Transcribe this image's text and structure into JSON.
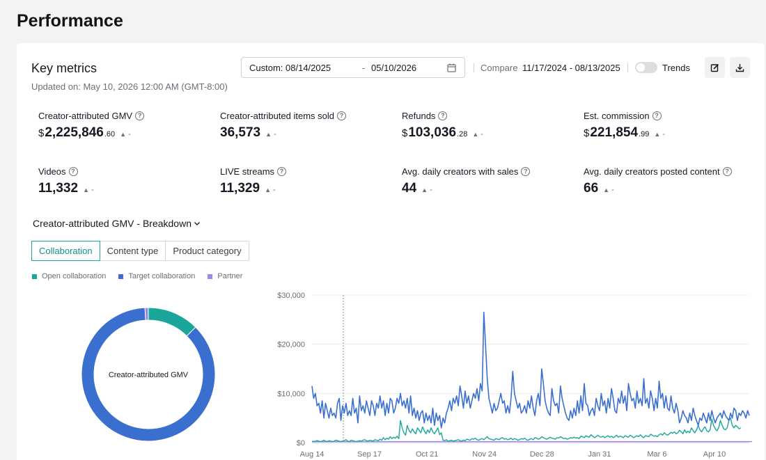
{
  "page": {
    "title": "Performance"
  },
  "key_metrics": {
    "title": "Key metrics",
    "updated": "Updated on: May 10, 2026 12:00 AM (GMT-8:00)",
    "date_start": "Custom: 08/14/2025",
    "date_sep": "-",
    "date_end": "05/10/2026",
    "compare_label": "Compare",
    "compare_range": "11/17/2024 - 08/13/2025",
    "trends_label": "Trends",
    "trends_on": false
  },
  "metrics": [
    {
      "label": "Creator-attributed GMV",
      "currency": "$",
      "value": "2,225,846",
      "decimal": ".60",
      "trend": "▲",
      "trend_value": "-"
    },
    {
      "label": "Creator-attributed items sold",
      "currency": "",
      "value": "36,573",
      "decimal": "",
      "trend": "▲",
      "trend_value": "-"
    },
    {
      "label": "Refunds",
      "currency": "$",
      "value": "103,036",
      "decimal": ".28",
      "trend": "▲",
      "trend_value": "-"
    },
    {
      "label": "Est. commission",
      "currency": "$",
      "value": "221,854",
      "decimal": ".99",
      "trend": "▲",
      "trend_value": "-"
    },
    {
      "label": "Videos",
      "currency": "",
      "value": "11,332",
      "decimal": "",
      "trend": "▲",
      "trend_value": "-"
    },
    {
      "label": "LIVE streams",
      "currency": "",
      "value": "11,329",
      "decimal": "",
      "trend": "▲",
      "trend_value": "-"
    },
    {
      "label": "Avg. daily creators with sales",
      "currency": "",
      "value": "44",
      "decimal": "",
      "trend": "▲",
      "trend_value": "-"
    },
    {
      "label": "Avg. daily creators posted content",
      "currency": "",
      "value": "66",
      "decimal": "",
      "trend": "▲",
      "trend_value": "-"
    }
  ],
  "breakdown": {
    "title": "Creator-attributed GMV - Breakdown",
    "tabs": [
      {
        "label": "Collaboration",
        "active": true
      },
      {
        "label": "Content type",
        "active": false
      },
      {
        "label": "Product category",
        "active": false
      }
    ],
    "legend": [
      {
        "label": "Open collaboration",
        "color": "#1aa69b"
      },
      {
        "label": "Target collaboration",
        "color": "#3a6fd0"
      },
      {
        "label": "Partner",
        "color": "#9b87e6"
      }
    ]
  },
  "chart_data": [
    {
      "type": "pie",
      "center_label": "Creator-attributed GMV",
      "categories": [
        "Open collaboration",
        "Target collaboration",
        "Partner"
      ],
      "values": [
        12.5,
        86.7,
        0.8
      ],
      "colors": [
        "#1aa69b",
        "#3a6fd0",
        "#9b87e6"
      ]
    },
    {
      "type": "line",
      "x_tick_labels": [
        "Aug 14",
        "Sep 17",
        "Oct 21",
        "Nov 24",
        "Dec 28",
        "Jan 31",
        "Mar 6",
        "Apr 10"
      ],
      "y_tick_labels": [
        "$0",
        "$10,000",
        "$20,000",
        "$30,000"
      ],
      "ylim": [
        0,
        30000
      ],
      "grid": true,
      "series": [
        {
          "name": "Target collaboration",
          "color": "#3a6fd0",
          "values": [
            11500,
            9000,
            10000,
            7500,
            8000,
            6000,
            8500,
            5000,
            8000,
            6500,
            5000,
            7000,
            5500,
            6000,
            5000,
            8000,
            9000,
            4500,
            7500,
            6000,
            8000,
            5500,
            6500,
            5500,
            9000,
            6000,
            7000,
            4000,
            9500,
            6500,
            7500,
            6000,
            8500,
            7000,
            5500,
            8500,
            7500,
            5500,
            8000,
            7000,
            9500,
            7000,
            8500,
            5500,
            8000,
            6000,
            9000,
            8500,
            6000,
            7000,
            9000,
            8000,
            10000,
            7500,
            8500,
            7000,
            9000,
            6000,
            9500,
            5500,
            7000,
            5000,
            6500,
            4500,
            6000,
            6500,
            4000,
            6000,
            4500,
            5500,
            4000,
            7000,
            3500,
            6000,
            4500,
            5500,
            3000,
            5000,
            4000,
            6000,
            7000,
            8500,
            6500,
            9000,
            8000,
            9500,
            7500,
            11500,
            9500,
            7000,
            10500,
            8000,
            9500,
            7000,
            8500,
            10000,
            9000,
            11000,
            8500,
            12000,
            10500,
            26500,
            20000,
            13000,
            9000,
            7500,
            6000,
            8000,
            6500,
            7000,
            8500,
            10000,
            8000,
            8500,
            6000,
            7500,
            6000,
            9000,
            14500,
            10000,
            8500,
            7000,
            8000,
            6000,
            6500,
            7500,
            6000,
            8500,
            7000,
            9500,
            7000,
            5500,
            8500,
            10000,
            7500,
            15000,
            12000,
            8500,
            7000,
            6000,
            5500,
            11000,
            8500,
            7500,
            8000,
            6000,
            11500,
            9000,
            7500,
            6000,
            5000,
            4500,
            6500,
            5000,
            7000,
            5500,
            8500,
            6000,
            9500,
            6500,
            12000,
            8000,
            7500,
            5500,
            6500,
            7000,
            5500,
            9000,
            7500,
            6500,
            10000,
            7500,
            8500,
            6000,
            9000,
            7000,
            11000,
            9000,
            6500,
            6000,
            9000,
            8000,
            10500,
            8000,
            9500,
            6500,
            12000,
            10000,
            8500,
            9000,
            7000,
            10500,
            8000,
            9000,
            7500,
            13000,
            8000,
            9000,
            7000,
            10500,
            9000,
            6500,
            9000,
            7000,
            12500,
            9000,
            10000,
            7000,
            9500,
            7000,
            6500,
            9500,
            7000,
            6000,
            8000,
            6500,
            4000,
            5000,
            6500,
            5500,
            5000,
            4000,
            6000,
            4500,
            7000,
            5500,
            4500,
            3500,
            5000,
            4500,
            6000,
            5000,
            4000,
            6000,
            4500,
            6500,
            5000,
            4000,
            5000,
            5500,
            6000,
            5000,
            6500,
            5500,
            5000,
            4500,
            6000,
            5000,
            7000,
            6500,
            4500,
            6000,
            5500,
            6500,
            6000,
            5000,
            6500,
            5500
          ]
        },
        {
          "name": "Open collaboration",
          "color": "#1aa69b",
          "values": [
            300,
            200,
            300,
            400,
            300,
            200,
            300,
            500,
            300,
            200,
            400,
            300,
            200,
            300,
            500,
            400,
            300,
            200,
            300,
            400,
            600,
            300,
            200,
            500,
            400,
            300,
            200,
            300,
            400,
            300,
            500,
            600,
            400,
            300,
            500,
            400,
            300,
            600,
            500,
            400,
            700,
            500,
            1000,
            600,
            900,
            700,
            1200,
            800,
            1100,
            900,
            1300,
            800,
            4500,
            3000,
            2000,
            1500,
            3500,
            2500,
            2000,
            2800,
            2200,
            1800,
            3000,
            2500,
            2000,
            3200,
            2400,
            1800,
            2600,
            2000,
            3000,
            2200,
            1800,
            2400,
            3000,
            1600,
            2000,
            500,
            400,
            600,
            300,
            400,
            500,
            300,
            400,
            500,
            600,
            400,
            300,
            500,
            400,
            700,
            600,
            500,
            800,
            700,
            900,
            600,
            500,
            700,
            800,
            600,
            900,
            1200,
            800,
            700,
            600,
            500,
            800,
            700,
            600,
            900,
            1000,
            700,
            800,
            600,
            700,
            900,
            600,
            800,
            700,
            500,
            600,
            800,
            700,
            900,
            600,
            500,
            700,
            800,
            600,
            1000,
            900,
            700,
            800,
            1200,
            1000,
            800,
            700,
            900,
            1100,
            900,
            800,
            700,
            1000,
            900,
            1200,
            1000,
            800,
            900,
            700,
            800,
            1000,
            900,
            1100,
            900,
            1000,
            800,
            1300,
            1200,
            1000,
            1400,
            1200,
            1100,
            1600,
            1300,
            1000,
            1200,
            1500,
            1200,
            1100,
            1300,
            1000,
            1200,
            1400,
            1100,
            1300,
            1000,
            1200,
            1500,
            1100,
            1300,
            1200,
            1000,
            1400,
            1200,
            1100,
            1500,
            1300,
            1000,
            1200,
            1400,
            1200,
            1600,
            1200,
            1000,
            1400,
            1300,
            1200,
            1700,
            1500,
            1300,
            1400,
            1200,
            1600,
            1800,
            1500,
            2000,
            1700,
            1500,
            1800,
            2100,
            1900,
            2200,
            1800,
            2000,
            2500,
            2200,
            1800,
            2600,
            2000,
            2300,
            2000,
            3000,
            2400,
            2000,
            2600,
            3500,
            2600,
            2200,
            2800,
            3200,
            2400,
            2200,
            2600,
            4800,
            3500,
            2800,
            2400,
            3000,
            4500,
            3600,
            2800,
            2600,
            3000,
            4500,
            5000,
            3500,
            3000,
            3500,
            3200,
            2800,
            3000
          ]
        },
        {
          "name": "Partner",
          "color": "#9b87e6",
          "values": [
            200,
            200,
            200,
            200,
            200,
            200,
            200,
            200,
            200,
            200,
            200,
            200,
            200,
            200,
            200,
            200,
            200,
            200,
            200,
            200,
            200,
            200,
            200,
            200,
            200,
            200,
            200,
            200,
            200,
            200,
            200,
            200,
            200,
            200,
            200,
            200,
            200,
            200,
            200,
            200,
            200,
            200,
            200,
            200,
            200,
            200,
            200,
            200,
            200,
            200,
            200,
            200,
            200,
            200,
            200,
            200,
            200,
            200,
            200,
            200,
            200,
            200,
            200,
            200,
            200,
            200,
            200,
            200,
            200,
            200,
            200,
            200,
            200,
            200,
            200,
            200,
            200,
            200,
            200,
            200,
            200,
            200,
            200,
            200,
            200,
            200,
            200,
            200,
            200,
            200,
            200,
            200,
            200,
            200,
            200,
            200,
            200,
            200,
            200,
            200,
            200,
            200,
            200,
            200,
            200,
            200,
            200,
            200,
            200,
            200,
            200,
            200,
            200,
            200,
            200,
            200,
            200,
            200,
            200,
            200,
            200,
            200,
            200,
            200,
            200,
            200,
            200,
            200,
            200,
            200,
            200,
            200,
            200,
            200,
            200,
            200,
            200,
            200,
            200,
            200,
            200,
            200,
            200,
            200,
            200,
            200,
            200,
            200,
            200,
            200,
            200,
            200,
            200,
            200,
            200,
            200,
            200,
            200,
            200,
            200,
            200,
            200,
            200,
            200,
            200,
            200,
            200,
            200,
            200,
            200,
            200,
            200,
            200,
            200,
            200,
            200,
            200,
            200,
            200,
            200,
            200,
            200,
            200,
            200,
            200,
            200,
            200,
            200,
            200,
            200,
            200,
            200,
            200,
            200,
            200,
            200,
            200,
            200,
            200,
            200,
            200,
            200,
            200,
            200,
            200,
            200,
            200,
            200,
            200,
            200,
            200,
            200,
            200,
            200,
            200,
            200,
            200,
            200,
            200,
            200,
            200,
            200,
            200,
            200,
            200,
            200,
            200,
            200,
            200,
            200,
            200,
            200,
            200,
            200,
            200,
            200,
            200,
            200,
            200,
            200,
            200,
            200,
            200,
            200,
            200,
            200,
            200,
            200,
            200,
            200,
            200,
            200,
            200,
            200,
            200,
            200,
            200,
            200,
            200,
            200,
            200,
            200,
            200,
            200,
            200,
            200,
            200,
            200,
            200,
            200
          ]
        }
      ]
    }
  ]
}
